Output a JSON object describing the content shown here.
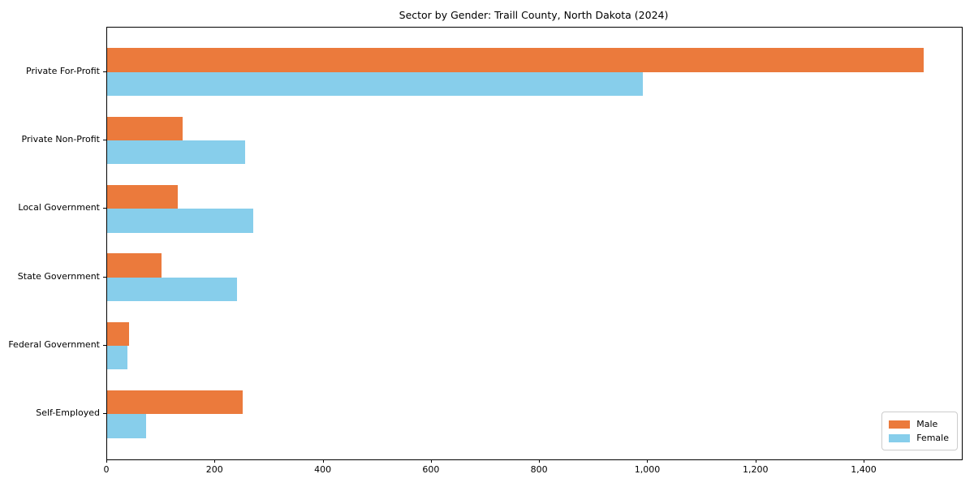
{
  "title": "Sector by Gender: Traill County, North Dakota (2024)",
  "chart_data": {
    "type": "bar",
    "orientation": "horizontal",
    "title": "Sector by Gender: Traill County, North Dakota (2024)",
    "categories": [
      "Private For-Profit",
      "Private Non-Profit",
      "Local Government",
      "State Government",
      "Federal Government",
      "Self-Employed"
    ],
    "series": [
      {
        "name": "Male",
        "color": "#EB7A3C",
        "values": [
          1510,
          140,
          130,
          100,
          40,
          250
        ]
      },
      {
        "name": "Female",
        "color": "#87CEEB",
        "values": [
          990,
          255,
          270,
          240,
          38,
          72
        ]
      }
    ],
    "xlabel": "",
    "ylabel": "",
    "xlim": [
      0,
      1580
    ],
    "xticks": [
      0,
      200,
      400,
      600,
      800,
      1000,
      1200,
      1400
    ],
    "xtick_labels": [
      "0",
      "200",
      "400",
      "600",
      "800",
      "1,000",
      "1,200",
      "1,400"
    ],
    "grid": false,
    "legend_position": "lower-right",
    "bar_height_fraction": 0.35
  },
  "colors": {
    "axis": "#000000",
    "background": "#ffffff",
    "legend_border": "#cccccc"
  }
}
